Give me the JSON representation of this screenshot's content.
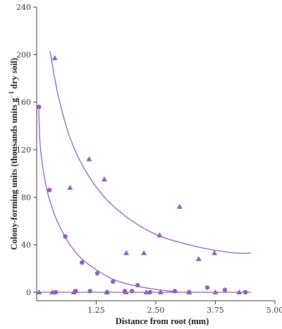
{
  "chart_data": {
    "type": "scatter",
    "xlabel": "Distance from root (mm)",
    "ylabel_parts": [
      "Colony-forming units (thousands units g",
      "−1",
      " dry soil)"
    ],
    "xlim": [
      0,
      5.0
    ],
    "ylim": [
      0,
      240
    ],
    "x_ticks": [
      {
        "value": 1.25,
        "label": "1.25"
      },
      {
        "value": 2.5,
        "label": "2.50"
      },
      {
        "value": 3.75,
        "label": "3.75"
      },
      {
        "value": 5.0,
        "label": "5.00"
      }
    ],
    "y_ticks": [
      {
        "value": 0,
        "label": "0"
      },
      {
        "value": 40,
        "label": "40"
      },
      {
        "value": 80,
        "label": "80"
      },
      {
        "value": 120,
        "label": "120"
      },
      {
        "value": 160,
        "label": "160"
      },
      {
        "value": 200,
        "label": "200"
      },
      {
        "value": 240,
        "label": "240"
      }
    ],
    "color": "#8a5fb0",
    "series": [
      {
        "marker": "triangle",
        "points": [
          [
            0.38,
            197
          ],
          [
            0.7,
            88
          ],
          [
            1.1,
            112
          ],
          [
            1.42,
            95
          ],
          [
            1.88,
            33
          ],
          [
            2.25,
            33
          ],
          [
            2.58,
            48
          ],
          [
            3.0,
            72
          ],
          [
            3.4,
            28
          ],
          [
            3.73,
            33
          ],
          [
            0.05,
            0
          ],
          [
            0.33,
            0
          ],
          [
            0.78,
            0
          ],
          [
            1.47,
            0
          ],
          [
            1.87,
            0
          ],
          [
            2.3,
            0
          ],
          [
            2.6,
            0
          ],
          [
            3.2,
            0
          ],
          [
            3.75,
            0
          ],
          [
            4.25,
            0
          ]
        ]
      },
      {
        "marker": "circle",
        "points": [
          [
            0.05,
            156
          ],
          [
            0.27,
            86
          ],
          [
            0.6,
            47
          ],
          [
            0.95,
            25
          ],
          [
            1.27,
            16
          ],
          [
            1.6,
            9
          ],
          [
            2.12,
            6
          ],
          [
            0.4,
            0
          ],
          [
            0.82,
            1
          ],
          [
            1.12,
            1
          ],
          [
            1.48,
            0
          ],
          [
            1.85,
            1
          ],
          [
            2.0,
            1
          ],
          [
            2.38,
            0
          ],
          [
            2.9,
            1
          ],
          [
            3.2,
            0
          ],
          [
            3.58,
            4
          ],
          [
            3.95,
            2
          ],
          [
            4.38,
            0
          ]
        ]
      }
    ],
    "fitted_curves": [
      {
        "marker": "triangle",
        "x": [
          0.28,
          0.45,
          0.7,
          1.0,
          1.4,
          1.8,
          2.2,
          2.6,
          3.0,
          3.4,
          3.8,
          4.2,
          4.5
        ],
        "y": [
          203,
          166,
          130,
          104,
          81,
          66,
          55,
          47,
          42,
          38,
          35,
          33,
          33
        ]
      },
      {
        "marker": "circle",
        "x": [
          0.04,
          0.08,
          0.2,
          0.35,
          0.5,
          0.7,
          0.95,
          1.25,
          1.6,
          2.0,
          2.4,
          2.8,
          3.0
        ],
        "y": [
          158,
          121,
          89,
          68,
          54,
          40,
          28,
          19,
          11,
          6,
          3,
          1,
          0
        ]
      },
      {
        "marker": "flat",
        "x": [
          0.03,
          4.5
        ],
        "y": [
          0,
          0
        ]
      }
    ]
  }
}
